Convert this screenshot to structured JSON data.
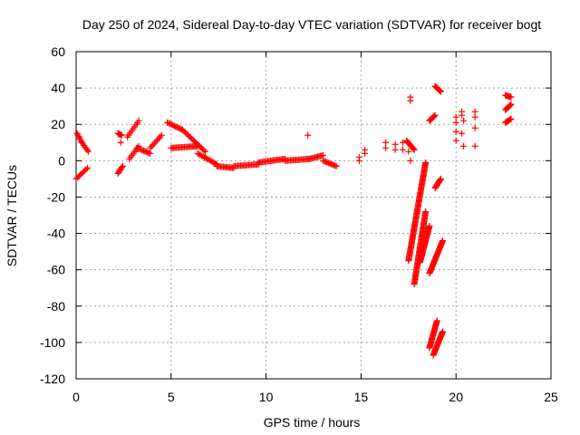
{
  "chart_data": {
    "type": "scatter",
    "title": "Day 250 of 2024, Sidereal Day-to-day VTEC variation (SDTVAR) for receiver bogt",
    "xlabel": "GPS time / hours",
    "ylabel": "SDTVAR / TECUs",
    "xlim": [
      0,
      25
    ],
    "ylim": [
      -120,
      60
    ],
    "xticks": [
      0,
      5,
      10,
      15,
      20,
      25
    ],
    "yticks": [
      -120,
      -100,
      -80,
      -60,
      -40,
      -20,
      0,
      20,
      40,
      60
    ],
    "grid": true,
    "marker": "+",
    "color": "#ff0000",
    "series": [
      {
        "name": "SDTVAR",
        "segments": [
          {
            "x": [
              0.0,
              0.6
            ],
            "y": [
              -10,
              -4
            ]
          },
          {
            "x": [
              0.05,
              0.3
            ],
            "y": [
              15,
              10
            ]
          },
          {
            "x": [
              0.3,
              0.65
            ],
            "y": [
              10,
              5
            ]
          },
          {
            "x": [
              2.2,
              2.45
            ],
            "y": [
              -7,
              -3
            ]
          },
          {
            "x": [
              2.2,
              2.4
            ],
            "y": [
              15,
              14
            ]
          },
          {
            "x": [
              2.7,
              3.3
            ],
            "y": [
              13,
              22
            ]
          },
          {
            "x": [
              2.8,
              3.3
            ],
            "y": [
              1,
              8
            ]
          },
          {
            "x": [
              3.2,
              3.9
            ],
            "y": [
              7,
              4
            ]
          },
          {
            "x": [
              3.9,
              4.5
            ],
            "y": [
              7,
              14
            ]
          },
          {
            "x": [
              4.8,
              5.6
            ],
            "y": [
              21,
              17
            ]
          },
          {
            "x": [
              5.0,
              6.4
            ],
            "y": [
              7,
              8
            ]
          },
          {
            "x": [
              5.6,
              6.8
            ],
            "y": [
              17,
              5
            ]
          },
          {
            "x": [
              6.4,
              7.4
            ],
            "y": [
              4,
              -2
            ]
          },
          {
            "x": [
              7.4,
              8.3
            ],
            "y": [
              -3,
              -4
            ]
          },
          {
            "x": [
              8.3,
              9.6
            ],
            "y": [
              -3,
              -2
            ]
          },
          {
            "x": [
              9.6,
              11.0
            ],
            "y": [
              -1,
              1
            ]
          },
          {
            "x": [
              11.0,
              12.3
            ],
            "y": [
              0,
              1
            ]
          },
          {
            "x": [
              12.3,
              13.0
            ],
            "y": [
              1,
              3
            ]
          },
          {
            "x": [
              13.0,
              13.7
            ],
            "y": [
              0,
              -3
            ]
          }
        ],
        "points": [
          {
            "x": 2.35,
            "y": 10
          },
          {
            "x": 12.2,
            "y": 14
          },
          {
            "x": 14.9,
            "y": 0
          },
          {
            "x": 14.9,
            "y": 2
          },
          {
            "x": 15.2,
            "y": 4
          },
          {
            "x": 15.2,
            "y": 6
          },
          {
            "x": 16.3,
            "y": 7
          },
          {
            "x": 16.3,
            "y": 10
          },
          {
            "x": 16.8,
            "y": 9
          },
          {
            "x": 16.8,
            "y": 6
          },
          {
            "x": 17.2,
            "y": 10
          },
          {
            "x": 17.2,
            "y": 6
          },
          {
            "x": 17.5,
            "y": 5
          },
          {
            "x": 17.6,
            "y": 0
          },
          {
            "x": 17.6,
            "y": 35
          },
          {
            "x": 17.6,
            "y": 33
          },
          {
            "x": 20.0,
            "y": 16
          },
          {
            "x": 20.0,
            "y": 11
          },
          {
            "x": 20.0,
            "y": 24
          },
          {
            "x": 20.0,
            "y": 21
          },
          {
            "x": 20.3,
            "y": 25
          },
          {
            "x": 20.3,
            "y": 27
          },
          {
            "x": 20.3,
            "y": 15
          },
          {
            "x": 20.4,
            "y": 8
          },
          {
            "x": 20.4,
            "y": 22
          },
          {
            "x": 21.0,
            "y": 8
          },
          {
            "x": 21.0,
            "y": 18
          },
          {
            "x": 21.0,
            "y": 27
          },
          {
            "x": 21.0,
            "y": 24
          }
        ],
        "clusters": [
          {
            "x": [
              17.4,
              17.8
            ],
            "y": [
              11,
              6
            ]
          },
          {
            "x": [
              18.6,
              18.9
            ],
            "y": [
              22,
              25
            ]
          },
          {
            "x": [
              18.9,
              19.2
            ],
            "y": [
              41,
              38
            ]
          },
          {
            "x": [
              17.5,
              18.4
            ],
            "y": [
              -55,
              -1
            ]
          },
          {
            "x": [
              17.8,
              18.4
            ],
            "y": [
              -68,
              -28
            ]
          },
          {
            "x": [
              18.1,
              18.6
            ],
            "y": [
              -56,
              -36
            ]
          },
          {
            "x": [
              18.6,
              19.3
            ],
            "y": [
              -62,
              -44
            ]
          },
          {
            "x": [
              18.9,
              19.2
            ],
            "y": [
              -15,
              -10
            ]
          },
          {
            "x": [
              18.6,
              19.0
            ],
            "y": [
              -103,
              -88
            ]
          },
          {
            "x": [
              18.8,
              19.3
            ],
            "y": [
              -107,
              -94
            ]
          },
          {
            "x": [
              22.6,
              22.9
            ],
            "y": [
              36,
              35
            ]
          },
          {
            "x": [
              22.6,
              22.9
            ],
            "y": [
              28,
              31
            ]
          },
          {
            "x": [
              22.6,
              22.9
            ],
            "y": [
              21,
              23
            ]
          }
        ]
      }
    ]
  }
}
